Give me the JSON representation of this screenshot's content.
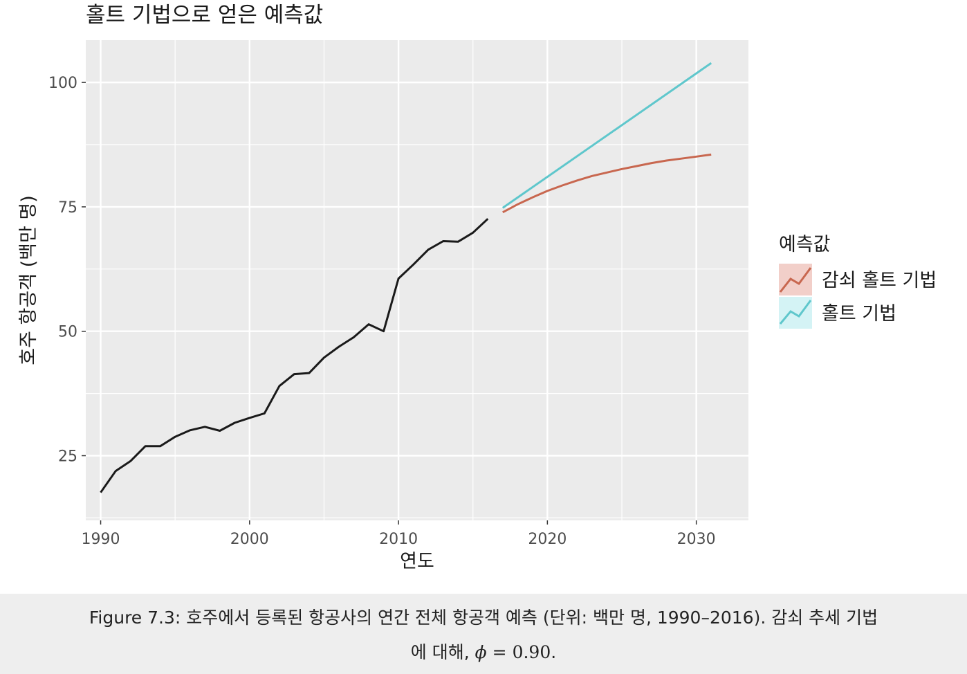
{
  "chart_data": {
    "type": "line",
    "title": "홀트 기법으로 얻은 예측값",
    "xlabel": "연도",
    "ylabel": "호주 항공객 (백만 명)",
    "xlim": [
      1989,
      2033.5
    ],
    "ylim": [
      12,
      108.5
    ],
    "x_ticks": [
      1990,
      2000,
      2010,
      2020,
      2030
    ],
    "x_tick_labels": [
      "1990",
      "2000",
      "2010",
      "2020",
      "2030"
    ],
    "x_minor_ticks": [
      1995,
      2005,
      2015,
      2025
    ],
    "y_ticks": [
      25,
      50,
      75,
      100
    ],
    "y_tick_labels": [
      "25",
      "50",
      "75",
      "100"
    ],
    "y_minor_ticks": [
      12.5,
      37.5,
      62.5,
      87.5
    ],
    "grid": true,
    "panel_color": "#ebebeb",
    "history": {
      "color": "#1a1a1a",
      "x": [
        1990,
        1991,
        1992,
        1993,
        1994,
        1995,
        1996,
        1997,
        1998,
        1999,
        2000,
        2001,
        2002,
        2003,
        2004,
        2005,
        2006,
        2007,
        2008,
        2009,
        2010,
        2011,
        2012,
        2013,
        2014,
        2015,
        2016
      ],
      "y": [
        17.6,
        21.9,
        23.9,
        26.9,
        26.9,
        28.8,
        30.1,
        30.8,
        30.0,
        31.6,
        32.6,
        33.5,
        39.0,
        41.4,
        41.6,
        44.7,
        46.9,
        48.8,
        51.4,
        50.0,
        60.6,
        63.4,
        66.4,
        68.1,
        68.0,
        69.8,
        72.6
      ]
    },
    "series": [
      {
        "name": "감쇠 홀트 기법",
        "color": "#c8674f",
        "x": [
          2017,
          2018,
          2019,
          2020,
          2021,
          2022,
          2023,
          2024,
          2025,
          2026,
          2027,
          2028,
          2029,
          2030,
          2031
        ],
        "y": [
          73.9,
          75.5,
          76.9,
          78.2,
          79.3,
          80.3,
          81.2,
          81.9,
          82.6,
          83.2,
          83.8,
          84.3,
          84.7,
          85.1,
          85.5
        ]
      },
      {
        "name": "홀트 기법",
        "color": "#5fc7cc",
        "x": [
          2017,
          2031
        ],
        "y": [
          74.8,
          103.9
        ]
      }
    ],
    "legend": {
      "title": "예측값",
      "position": "right"
    }
  },
  "caption": {
    "line1": "Figure 7.3: 호주에서 등록된 항공사의 연간 전체 항공객 예측 (단위: 백만 명, 1990–2016). 감쇠 추세 기법",
    "line2_prefix": "에 대해,",
    "phi_symbol": "ϕ",
    "equals": "=",
    "phi_value": "0.90",
    "line2_suffix": "."
  }
}
